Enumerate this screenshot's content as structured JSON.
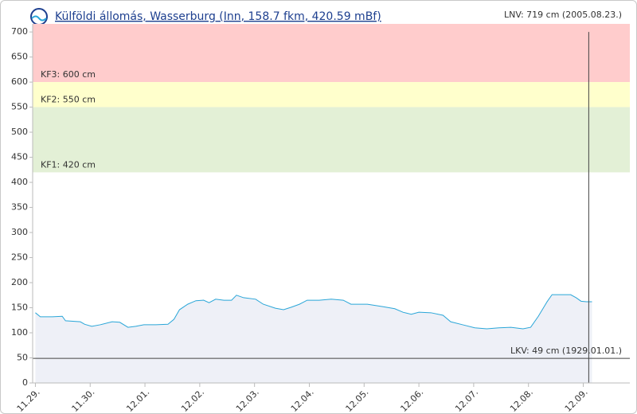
{
  "chart_data": {
    "type": "line",
    "title": "Külföldi állomás, Wasserburg (Inn, 158.7 fkm, 420.59 mBf)",
    "top_note": "LNV: 719 cm (2005.08.23.)",
    "x": [
      0,
      0.09,
      0.31,
      0.49,
      0.55,
      0.82,
      0.9,
      1.03,
      1.18,
      1.4,
      1.54,
      1.69,
      1.83,
      1.98,
      2.2,
      2.42,
      2.53,
      2.63,
      2.78,
      2.93,
      3.07,
      3.17,
      3.29,
      3.44,
      3.58,
      3.67,
      3.8,
      4.02,
      4.16,
      4.38,
      4.53,
      4.67,
      4.82,
      4.96,
      5.18,
      5.4,
      5.62,
      5.76,
      6.06,
      6.35,
      6.56,
      6.71,
      6.86,
      7.0,
      7.22,
      7.44,
      7.58,
      7.8,
      8.02,
      8.24,
      8.46,
      8.68,
      8.9,
      9.04,
      9.18,
      9.34,
      9.43,
      9.62,
      9.77,
      9.87,
      9.96,
      10.06,
      10.16
    ],
    "values": [
      140,
      132,
      132,
      133,
      124,
      122,
      117,
      113,
      116,
      122,
      121,
      111,
      113,
      116,
      116,
      117,
      127,
      146,
      157,
      164,
      165,
      160,
      167,
      165,
      165,
      175,
      170,
      167,
      157,
      149,
      146,
      151,
      157,
      165,
      165,
      167,
      165,
      157,
      157,
      152,
      148,
      141,
      137,
      141,
      140,
      135,
      122,
      116,
      110,
      108,
      110,
      111,
      108,
      111,
      133,
      162,
      176,
      176,
      176,
      170,
      163,
      162,
      162
    ],
    "color": "#2aa6d8",
    "area_color": "#eef0f7",
    "xlim": [
      -0.05,
      10.85
    ],
    "xticks": [
      {
        "value": 0,
        "label": "11.29."
      },
      {
        "value": 1,
        "label": "11.30."
      },
      {
        "value": 2,
        "label": "12.01."
      },
      {
        "value": 3,
        "label": "12.02."
      },
      {
        "value": 4,
        "label": "12.03."
      },
      {
        "value": 5,
        "label": "12.04."
      },
      {
        "value": 6,
        "label": "12.05."
      },
      {
        "value": 7,
        "label": "12.06."
      },
      {
        "value": 8,
        "label": "12.07."
      },
      {
        "value": 9,
        "label": "12.08."
      },
      {
        "value": 10,
        "label": "12.09."
      }
    ],
    "ylim": [
      0,
      716
    ],
    "yticks": [
      0,
      50,
      100,
      150,
      200,
      250,
      300,
      350,
      400,
      450,
      500,
      550,
      600,
      650,
      700
    ],
    "marker_x": 10.1,
    "thresholds": [
      {
        "label": "KF3: 600 cm",
        "value": 600,
        "color": "#ffcccc"
      },
      {
        "label": "KF2: 550 cm",
        "value": 550,
        "color": "#ffffcc"
      },
      {
        "label": "KF1: 420 cm",
        "value": 420,
        "color": "#e3f0d6"
      }
    ],
    "low_line": {
      "label": "LKV: 49 cm (1929.01.01.)",
      "value": 49
    }
  }
}
